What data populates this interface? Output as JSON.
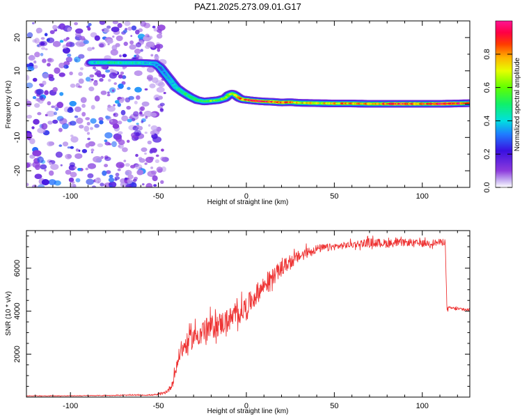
{
  "title": "PAZ1.2025.273.09.01.G17",
  "chart_data": [
    {
      "type": "heatmap",
      "name": "spectrogram",
      "xlabel": "Height of straight line (km)",
      "ylabel": "Frequency (Hz)",
      "xlim": [
        -125,
        127
      ],
      "ylim": [
        -25,
        25
      ],
      "xticks": [
        -100,
        -50,
        0,
        50,
        100
      ],
      "xtick_labels": [
        "-100",
        "-50",
        "0",
        "50",
        "100"
      ],
      "yticks": [
        -20,
        -10,
        0,
        10,
        20
      ],
      "ytick_labels": [
        "-20",
        "-10",
        "0",
        "10",
        "20"
      ],
      "colorbar": {
        "label": "Normalized spectral amplitude",
        "range": [
          0,
          1
        ],
        "ticks": [
          0.0,
          0.2,
          0.4,
          0.6,
          0.8
        ],
        "tick_labels": [
          "0.0",
          "0.2",
          "0.4",
          "0.6",
          "0.8"
        ]
      },
      "ridge": {
        "x": [
          -88,
          -80,
          -70,
          -60,
          -52,
          -49,
          -46,
          -43,
          -40,
          -36,
          -32,
          -28,
          -24,
          -20,
          -16,
          -12,
          -10,
          -8,
          -6,
          -4,
          -2,
          0,
          5,
          10,
          15,
          20,
          25,
          30,
          40,
          50,
          60,
          70,
          80,
          90,
          100,
          110,
          120,
          127
        ],
        "y": [
          12.5,
          12.5,
          12.4,
          12.4,
          12.2,
          11.0,
          9.0,
          7.0,
          5.0,
          3.5,
          2.2,
          1.2,
          0.8,
          1.0,
          1.2,
          1.8,
          2.8,
          3.2,
          2.6,
          1.8,
          1.4,
          1.3,
          1.0,
          0.8,
          0.7,
          0.5,
          0.6,
          0.4,
          0.3,
          0.2,
          0.2,
          0.1,
          0.1,
          0.1,
          0.1,
          0.1,
          0.2,
          0.3
        ],
        "amplitude": [
          0.35,
          0.45,
          0.45,
          0.4,
          0.35,
          0.3,
          0.3,
          0.35,
          0.4,
          0.45,
          0.5,
          0.5,
          0.55,
          0.6,
          0.55,
          0.6,
          0.65,
          0.7,
          0.75,
          0.8,
          0.85,
          0.9,
          0.95,
          0.95,
          0.85,
          0.9,
          0.8,
          0.75,
          0.7,
          0.75,
          0.8,
          0.75,
          0.85,
          0.9,
          0.85,
          0.95,
          0.9,
          0.8
        ]
      },
      "noise_region": {
        "x": [
          -125,
          -50
        ],
        "y": [
          -25,
          25
        ],
        "amplitude": [
          0.05,
          0.35
        ]
      }
    },
    {
      "type": "line",
      "name": "snr",
      "xlabel": "Height of straight line (km)",
      "ylabel": "SNR (10 * v/v)",
      "xlim": [
        -125,
        127
      ],
      "ylim": [
        0,
        7750
      ],
      "xticks": [
        -100,
        -50,
        0,
        50,
        100
      ],
      "xtick_labels": [
        "-100",
        "-50",
        "0",
        "50",
        "100"
      ],
      "yticks": [
        2000,
        4000,
        6000
      ],
      "ytick_labels": [
        "2000",
        "4000",
        "6000"
      ],
      "color": "#ee3333",
      "x": [
        -125,
        -100,
        -75,
        -52,
        -47,
        -44,
        -42,
        -40,
        -38,
        -35,
        -30,
        -25,
        -20,
        -15,
        -10,
        -5,
        0,
        5,
        10,
        15,
        20,
        25,
        30,
        35,
        40,
        50,
        60,
        70,
        80,
        90,
        100,
        110,
        113,
        114,
        116,
        120,
        127
      ],
      "y": [
        60,
        60,
        80,
        100,
        170,
        350,
        650,
        1300,
        2000,
        2400,
        2800,
        3050,
        3250,
        3400,
        3600,
        3850,
        4200,
        4700,
        5200,
        5600,
        6000,
        6300,
        6550,
        6750,
        6900,
        7000,
        7100,
        7200,
        7150,
        7200,
        7150,
        7200,
        7250,
        4100,
        4150,
        4100,
        4050
      ],
      "noise": [
        20,
        20,
        25,
        40,
        80,
        150,
        250,
        350,
        450,
        550,
        650,
        700,
        700,
        700,
        700,
        650,
        650,
        600,
        550,
        500,
        450,
        400,
        350,
        300,
        250,
        200,
        200,
        250,
        250,
        200,
        200,
        200,
        200,
        100,
        100,
        100,
        100
      ]
    }
  ]
}
